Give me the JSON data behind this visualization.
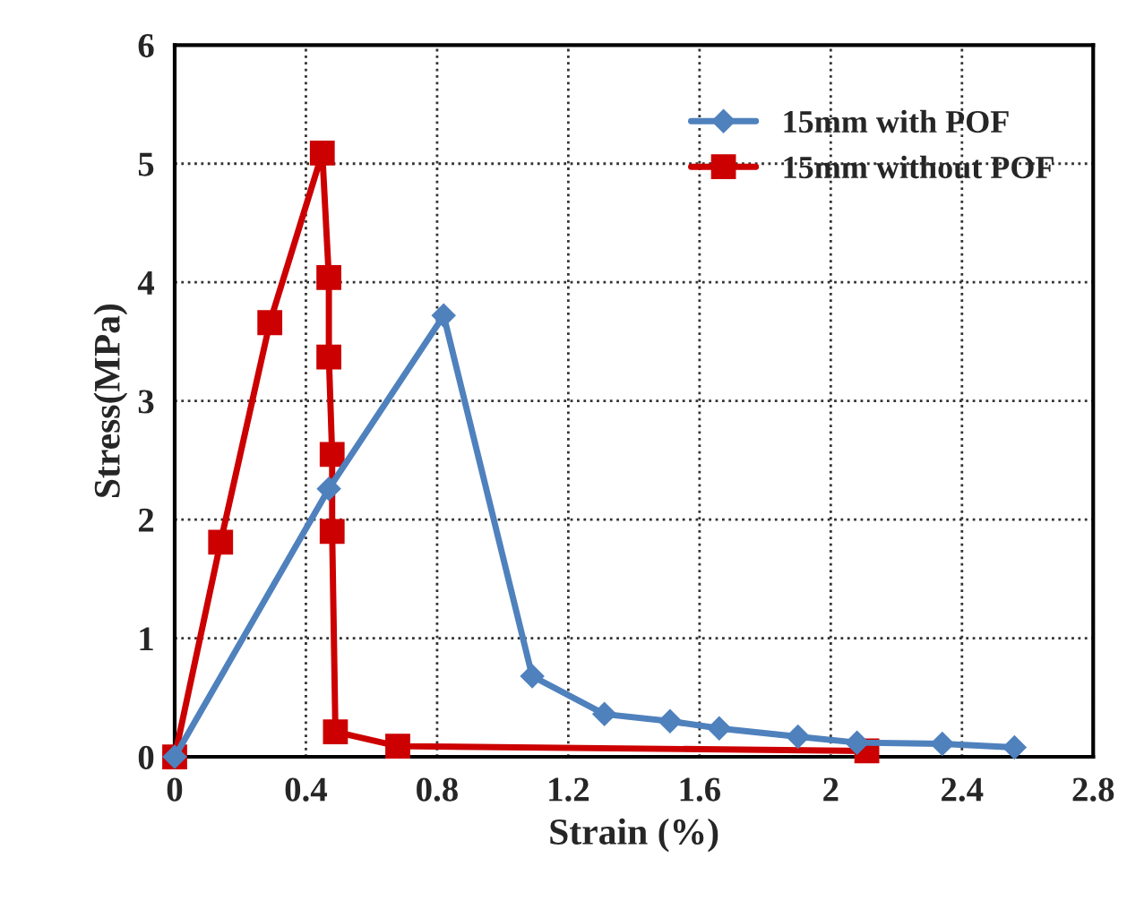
{
  "chart_data": {
    "type": "line",
    "xlabel": "Strain (%)",
    "ylabel": "Stress(MPa)",
    "xlim": [
      0,
      2.8
    ],
    "xticks": [
      0,
      0.4,
      0.8,
      1.2,
      1.6,
      2,
      2.4,
      2.8
    ],
    "ylim": [
      0,
      6
    ],
    "yticks": [
      0,
      1,
      2,
      3,
      4,
      5,
      6
    ],
    "grid": true,
    "legend": "top right",
    "series": [
      {
        "name": "15mm with POF",
        "color": "#4f81bd",
        "marker": "diamond",
        "x": [
          0,
          0.47,
          0.82,
          1.09,
          1.31,
          1.51,
          1.66,
          1.9,
          2.08,
          2.34,
          2.56
        ],
        "values": [
          0,
          2.26,
          3.72,
          0.68,
          0.36,
          0.3,
          0.24,
          0.17,
          0.12,
          0.11,
          0.08
        ]
      },
      {
        "name": "15mm without POF",
        "color": "#cc0000",
        "marker": "square",
        "x": [
          0,
          0.14,
          0.29,
          0.45,
          0.47,
          0.47,
          0.48,
          0.48,
          0.49,
          0.68,
          2.11
        ],
        "values": [
          0,
          1.81,
          3.66,
          5.09,
          4.04,
          3.37,
          2.55,
          1.9,
          0.21,
          0.09,
          0.05
        ]
      }
    ]
  }
}
